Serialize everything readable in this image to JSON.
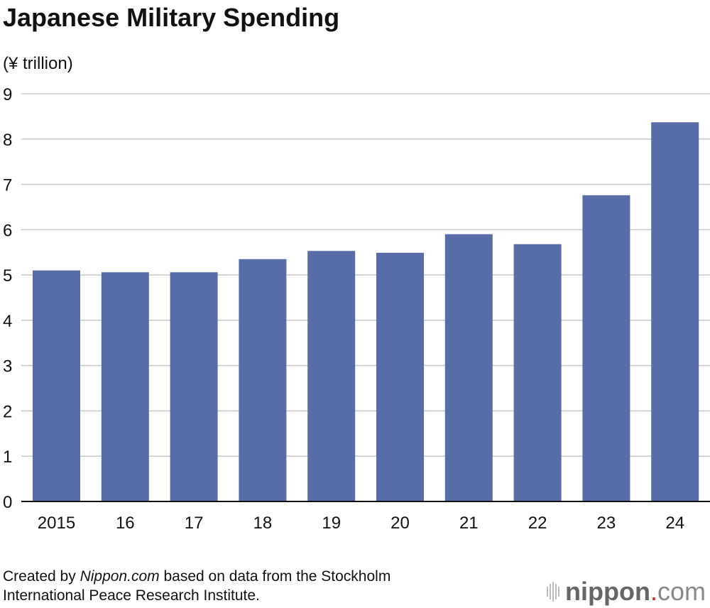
{
  "chart_data": {
    "type": "bar",
    "title": "Japanese Military Spending",
    "ylabel": "(¥ trillion)",
    "xlabel": "",
    "categories": [
      "2015",
      "16",
      "17",
      "18",
      "19",
      "20",
      "21",
      "22",
      "23",
      "24"
    ],
    "values": [
      5.1,
      5.06,
      5.06,
      5.35,
      5.53,
      5.49,
      5.9,
      5.68,
      6.76,
      8.37
    ],
    "ylim": [
      0,
      9
    ],
    "yticks": [
      0,
      1,
      2,
      3,
      4,
      5,
      6,
      7,
      8,
      9
    ],
    "grid": true,
    "bar_color": "#586ca8",
    "grid_color": "#c8c8c8"
  },
  "footer": {
    "pre": "Created by ",
    "source": "Nippon.com",
    "post": " based on data from the Stockholm",
    "line2": "International Peace Research Institute."
  },
  "logo": {
    "name": "nippon",
    "dot": ".",
    "suffix": "com"
  }
}
